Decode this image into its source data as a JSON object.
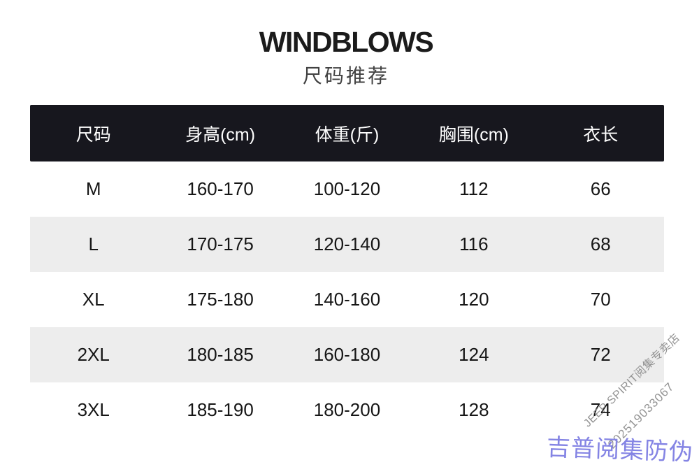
{
  "page": {
    "brand": "WINDBLOWS",
    "subtitle": "尺码推荐"
  },
  "table": {
    "headers": [
      "尺码",
      "身高(cm)",
      "体重(斤)",
      "胸围(cm)",
      "衣长"
    ],
    "rows": [
      [
        "M",
        "160-170",
        "100-120",
        "112",
        "66"
      ],
      [
        "L",
        "170-175",
        "120-140",
        "116",
        "68"
      ],
      [
        "XL",
        "175-180",
        "140-160",
        "120",
        "70"
      ],
      [
        "2XL",
        "180-185",
        "160-180",
        "124",
        "72"
      ],
      [
        "3XL",
        "185-190",
        "180-200",
        "128",
        "74"
      ]
    ]
  },
  "watermarks": {
    "store": "JEEP SPIRIT阅集专卖店",
    "serial": "202519033067",
    "anti_fake": "吉普阅集防伪",
    "anti_fake_color": "#8484e4",
    "gray_color": "#8f8f8f"
  },
  "colors": {
    "header_bg": "#17171e",
    "header_text": "#ffffff",
    "row_alt_bg": "#ededed",
    "body_text": "#161616",
    "background": "#ffffff"
  },
  "chart_data": {
    "type": "table",
    "title": "WINDBLOWS 尺码推荐",
    "columns": [
      "尺码",
      "身高(cm)",
      "体重(斤)",
      "胸围(cm)",
      "衣长"
    ],
    "rows": [
      [
        "M",
        "160-170",
        "100-120",
        "112",
        "66"
      ],
      [
        "L",
        "170-175",
        "120-140",
        "116",
        "68"
      ],
      [
        "XL",
        "175-180",
        "140-160",
        "120",
        "70"
      ],
      [
        "2XL",
        "180-185",
        "160-180",
        "124",
        "72"
      ],
      [
        "3XL",
        "185-190",
        "180-200",
        "128",
        "74"
      ]
    ]
  }
}
